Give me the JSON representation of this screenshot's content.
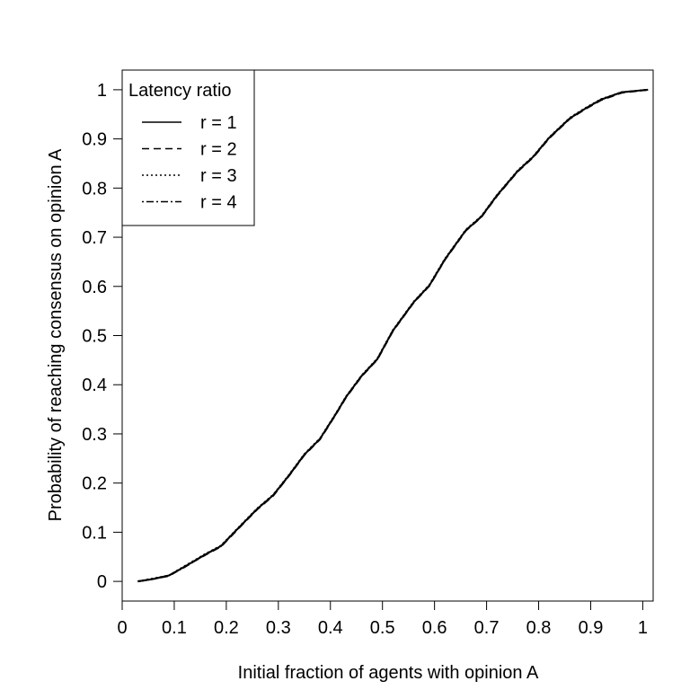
{
  "chart_data": {
    "type": "line",
    "xlabel": "Initial fraction of agents with opinion A",
    "ylabel": "Probability of reaching consensus on opinion A",
    "xlim": [
      0,
      1.02
    ],
    "ylim": [
      -0.04,
      1.04
    ],
    "x_ticks": [
      "0",
      "0.1",
      "0.2",
      "0.3",
      "0.4",
      "0.5",
      "0.6",
      "0.7",
      "0.8",
      "0.9",
      "1"
    ],
    "x_tick_values": [
      0,
      0.1,
      0.2,
      0.3,
      0.4,
      0.5,
      0.6,
      0.7,
      0.8,
      0.9,
      1
    ],
    "y_ticks": [
      "0",
      "0.1",
      "0.2",
      "0.3",
      "0.4",
      "0.5",
      "0.6",
      "0.7",
      "0.8",
      "0.9",
      "1"
    ],
    "y_tick_values": [
      0,
      0.1,
      0.2,
      0.3,
      0.4,
      0.5,
      0.6,
      0.7,
      0.8,
      0.9,
      1
    ],
    "grid": false,
    "legend": {
      "title": "Latency ratio",
      "position": "top-left"
    },
    "series": [
      {
        "name": "r = 1",
        "dash": "solid",
        "x": [
          0.03,
          0.06,
          0.09,
          0.12,
          0.16,
          0.19,
          0.22,
          0.26,
          0.29,
          0.32,
          0.35,
          0.38,
          0.41,
          0.43,
          0.46,
          0.49,
          0.52,
          0.56,
          0.59,
          0.62,
          0.66,
          0.69,
          0.72,
          0.76,
          0.79,
          0.82,
          0.86,
          0.89,
          0.92,
          0.96,
          1.01
        ],
        "y": [
          0.0,
          0.005,
          0.012,
          0.03,
          0.055,
          0.072,
          0.105,
          0.148,
          0.175,
          0.215,
          0.258,
          0.29,
          0.34,
          0.375,
          0.418,
          0.452,
          0.51,
          0.568,
          0.602,
          0.655,
          0.714,
          0.742,
          0.785,
          0.835,
          0.864,
          0.902,
          0.942,
          0.962,
          0.98,
          0.995,
          1.0
        ]
      },
      {
        "name": "r = 2",
        "dash": "dashed",
        "x": [
          0.03,
          0.06,
          0.09,
          0.12,
          0.16,
          0.19,
          0.22,
          0.26,
          0.29,
          0.32,
          0.35,
          0.38,
          0.41,
          0.43,
          0.46,
          0.49,
          0.52,
          0.56,
          0.59,
          0.62,
          0.66,
          0.69,
          0.72,
          0.76,
          0.79,
          0.82,
          0.86,
          0.89,
          0.92,
          0.96,
          1.01
        ],
        "y": [
          0.0,
          0.005,
          0.011,
          0.03,
          0.054,
          0.071,
          0.104,
          0.147,
          0.174,
          0.214,
          0.257,
          0.289,
          0.339,
          0.374,
          0.417,
          0.451,
          0.509,
          0.567,
          0.601,
          0.654,
          0.713,
          0.741,
          0.784,
          0.834,
          0.863,
          0.901,
          0.941,
          0.961,
          0.979,
          0.994,
          1.0
        ]
      },
      {
        "name": "r = 3",
        "dash": "dotted",
        "x": [
          0.03,
          0.06,
          0.09,
          0.12,
          0.16,
          0.19,
          0.22,
          0.26,
          0.29,
          0.32,
          0.35,
          0.38,
          0.41,
          0.43,
          0.46,
          0.49,
          0.52,
          0.56,
          0.59,
          0.62,
          0.66,
          0.69,
          0.72,
          0.76,
          0.79,
          0.82,
          0.86,
          0.89,
          0.92,
          0.96,
          1.01
        ],
        "y": [
          0.0,
          0.006,
          0.012,
          0.031,
          0.056,
          0.073,
          0.106,
          0.149,
          0.176,
          0.216,
          0.259,
          0.291,
          0.341,
          0.376,
          0.419,
          0.453,
          0.511,
          0.569,
          0.603,
          0.656,
          0.715,
          0.743,
          0.786,
          0.836,
          0.865,
          0.903,
          0.943,
          0.963,
          0.981,
          0.995,
          1.0
        ]
      },
      {
        "name": "r = 4",
        "dash": "dotdash",
        "x": [
          0.03,
          0.06,
          0.09,
          0.12,
          0.16,
          0.19,
          0.22,
          0.26,
          0.29,
          0.32,
          0.35,
          0.38,
          0.41,
          0.43,
          0.46,
          0.49,
          0.52,
          0.56,
          0.59,
          0.62,
          0.66,
          0.69,
          0.72,
          0.76,
          0.79,
          0.82,
          0.86,
          0.89,
          0.92,
          0.96,
          1.01
        ],
        "y": [
          0.0,
          0.005,
          0.012,
          0.029,
          0.055,
          0.072,
          0.105,
          0.148,
          0.175,
          0.215,
          0.258,
          0.29,
          0.34,
          0.375,
          0.418,
          0.452,
          0.51,
          0.568,
          0.602,
          0.655,
          0.714,
          0.742,
          0.785,
          0.835,
          0.864,
          0.902,
          0.942,
          0.962,
          0.98,
          0.995,
          1.0
        ]
      }
    ]
  }
}
